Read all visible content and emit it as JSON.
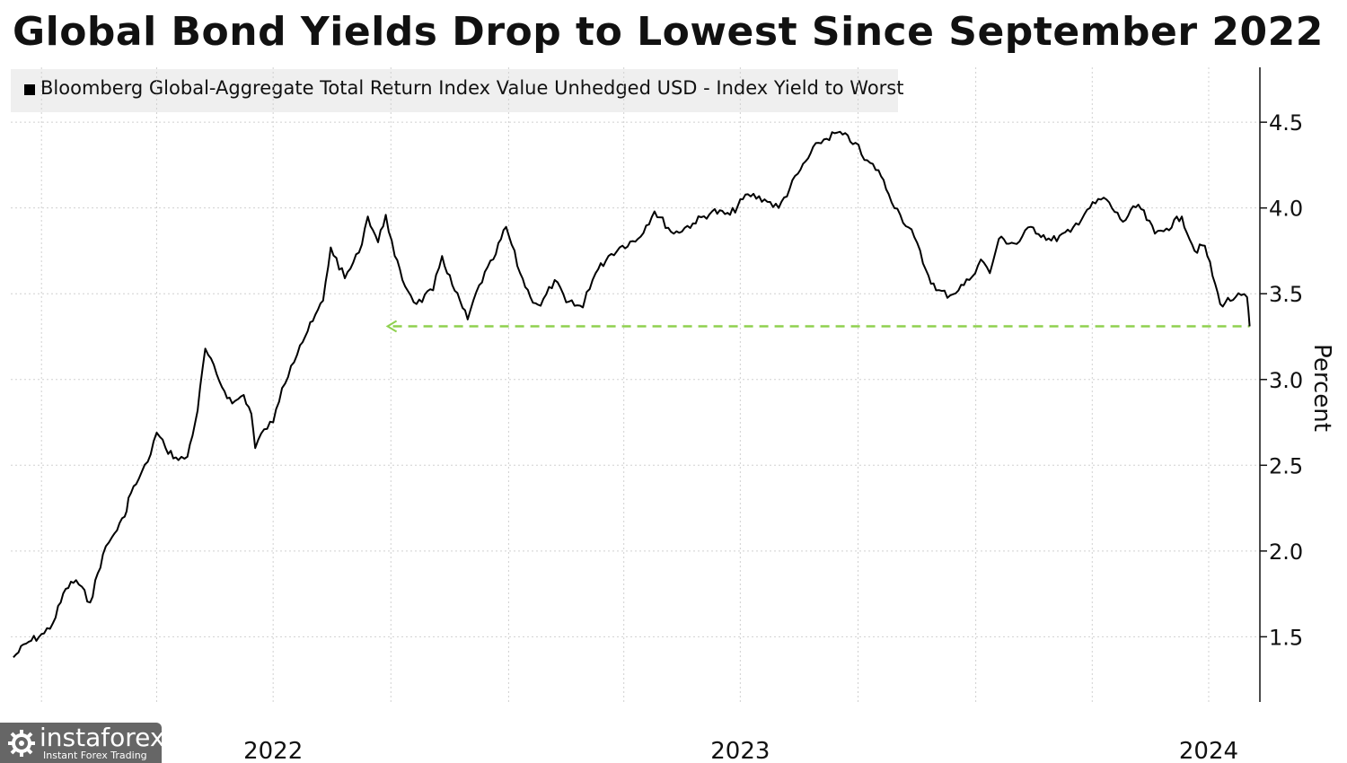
{
  "title": "Global Bond Yields Drop to Lowest Since September 2022",
  "legend": {
    "label": "Bloomberg Global-Aggregate Total Return Index Value Unhedged USD - Index Yield to Worst"
  },
  "watermark": {
    "name": "instaforex",
    "tagline": "Instant Forex Trading"
  },
  "colors": {
    "line": "#000000",
    "reference_line": "#8fd14f",
    "grid": "#d0d0d0",
    "legend_bg": "#efefef"
  },
  "chart_data": {
    "type": "line",
    "title": "Global Bond Yields Drop to Lowest Since September 2022",
    "ylabel": "Percent",
    "y_axis_side": "right",
    "ylim": [
      1.12,
      4.82
    ],
    "yticks": [
      1.5,
      2.0,
      2.5,
      3.0,
      3.5,
      4.0,
      4.5
    ],
    "ytick_labels": [
      "1.5",
      "2.0",
      "2.5",
      "3.0",
      "3.5",
      "4.0",
      "4.5"
    ],
    "xlim": [
      "2021-12-08",
      "2024-08-10"
    ],
    "xtick_labels": [
      {
        "date": "2022-07-01",
        "label": "2022"
      },
      {
        "date": "2023-07-01",
        "label": "2023"
      },
      {
        "date": "2024-07-01",
        "label": "2024"
      }
    ],
    "grid_dates": [
      "2022-01-01",
      "2022-04-01",
      "2022-07-01",
      "2022-10-01",
      "2023-01-01",
      "2023-04-01",
      "2023-07-01",
      "2023-10-01",
      "2024-01-01",
      "2024-04-01",
      "2024-07-01"
    ],
    "grid": true,
    "legend_position": "top-left",
    "reference_line": {
      "value": 3.31,
      "style": "dashed",
      "from": "2022-09-27",
      "to": "2024-08-02",
      "annotation": "lowest since September 2022"
    },
    "series": [
      {
        "name": "Bloomberg Global-Aggregate Total Return Index Value Unhedged USD - Index Yield to Worst",
        "x": [
          "2021-12-10",
          "2021-12-20",
          "2022-01-03",
          "2022-01-10",
          "2022-01-20",
          "2022-01-28",
          "2022-02-08",
          "2022-02-18",
          "2022-02-25",
          "2022-03-07",
          "2022-03-10",
          "2022-03-18",
          "2022-03-25",
          "2022-04-01",
          "2022-04-08",
          "2022-04-18",
          "2022-04-25",
          "2022-05-03",
          "2022-05-09",
          "2022-05-20",
          "2022-05-30",
          "2022-06-08",
          "2022-06-14",
          "2022-06-17",
          "2022-06-24",
          "2022-07-01",
          "2022-07-08",
          "2022-07-15",
          "2022-07-22",
          "2022-08-01",
          "2022-08-09",
          "2022-08-15",
          "2022-08-26",
          "2022-09-06",
          "2022-09-13",
          "2022-09-21",
          "2022-09-27",
          "2022-10-04",
          "2022-10-10",
          "2022-10-21",
          "2022-11-03",
          "2022-11-10",
          "2022-11-18",
          "2022-11-30",
          "2022-12-09",
          "2022-12-20",
          "2022-12-30",
          "2023-01-10",
          "2023-01-18",
          "2023-01-26",
          "2023-02-06",
          "2023-02-15",
          "2023-02-28",
          "2023-03-03",
          "2023-03-10",
          "2023-03-20",
          "2023-03-31",
          "2023-04-12",
          "2023-04-25",
          "2023-05-10",
          "2023-05-25",
          "2023-06-09",
          "2023-06-23",
          "2023-07-07",
          "2023-07-20",
          "2023-07-31",
          "2023-08-15",
          "2023-08-31",
          "2023-09-15",
          "2023-09-29",
          "2023-10-06",
          "2023-10-17",
          "2023-10-25",
          "2023-11-03",
          "2023-11-14",
          "2023-11-23",
          "2023-12-01",
          "2023-12-12",
          "2023-12-27",
          "2024-01-05",
          "2024-01-12",
          "2024-01-19",
          "2024-02-02",
          "2024-02-13",
          "2024-02-29",
          "2024-03-15",
          "2024-03-28",
          "2024-04-10",
          "2024-04-25",
          "2024-05-07",
          "2024-05-20",
          "2024-05-29",
          "2024-06-10",
          "2024-06-20",
          "2024-06-28",
          "2024-07-10",
          "2024-07-22",
          "2024-07-31",
          "2024-08-02"
        ],
        "values": [
          1.38,
          1.46,
          1.52,
          1.58,
          1.78,
          1.83,
          1.7,
          1.98,
          2.08,
          2.2,
          2.31,
          2.42,
          2.52,
          2.69,
          2.6,
          2.53,
          2.55,
          2.82,
          3.18,
          2.99,
          2.86,
          2.91,
          2.8,
          2.6,
          2.71,
          2.75,
          2.95,
          3.08,
          3.2,
          3.34,
          3.46,
          3.77,
          3.59,
          3.74,
          3.95,
          3.8,
          3.96,
          3.72,
          3.58,
          3.44,
          3.52,
          3.72,
          3.55,
          3.35,
          3.55,
          3.7,
          3.89,
          3.62,
          3.48,
          3.43,
          3.58,
          3.45,
          3.42,
          3.51,
          3.62,
          3.72,
          3.78,
          3.82,
          3.98,
          3.85,
          3.91,
          3.98,
          3.96,
          4.08,
          4.05,
          4.0,
          4.2,
          4.38,
          4.44,
          4.38,
          4.28,
          4.22,
          4.08,
          3.96,
          3.83,
          3.64,
          3.52,
          3.49,
          3.58,
          3.7,
          3.62,
          3.82,
          3.79,
          3.89,
          3.81,
          3.86,
          3.99,
          4.06,
          3.92,
          4.02,
          3.85,
          3.88,
          3.95,
          3.75,
          3.78,
          3.44,
          3.48,
          3.48,
          3.31
        ]
      }
    ]
  }
}
